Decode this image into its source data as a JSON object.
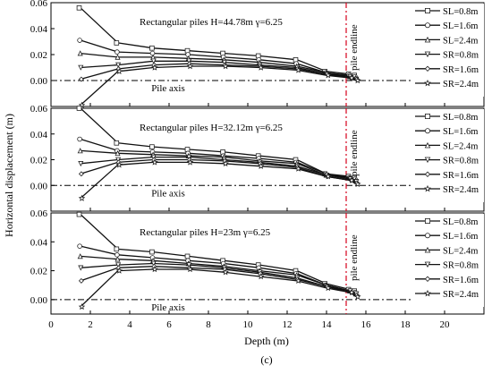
{
  "figure": {
    "y_axis_title": "Horizontal displacement (m)",
    "x_axis_title": "Depth (m)",
    "caption": "(c)",
    "endline_label": "pile endline",
    "axis_label": "Pile axis"
  },
  "chart_data": [
    {
      "type": "line",
      "title": "Rectangular piles  H=44.78m   γ=6.25",
      "xlabel": "Depth (m)",
      "ylabel": "Horizontal displacement (m)",
      "xlim": [
        0,
        22
      ],
      "ylim": [
        -0.02,
        0.06
      ],
      "yticks": [
        "0.06",
        "0.04",
        "0.02",
        "0.00"
      ],
      "grid": false,
      "legend": "top-right",
      "reference_lines": {
        "pile_endline_x": 15,
        "pile_axis_y": 0
      },
      "x": [
        1.5,
        3.4,
        5.2,
        7.0,
        8.8,
        10.6,
        12.5,
        14.0,
        15.2,
        15.5
      ],
      "series": [
        {
          "name": "SL=0.8m",
          "marker": "square",
          "values": [
            0.056,
            0.029,
            0.025,
            0.023,
            0.021,
            0.019,
            0.016,
            0.007,
            0.005,
            0.004
          ]
        },
        {
          "name": "SL=1.6m",
          "marker": "circle",
          "values": [
            0.031,
            0.022,
            0.021,
            0.02,
            0.018,
            0.016,
            0.013,
            0.006,
            0.004,
            0.003
          ]
        },
        {
          "name": "SL=2.4m",
          "marker": "triangle",
          "values": [
            0.021,
            0.018,
            0.018,
            0.017,
            0.016,
            0.014,
            0.011,
            0.006,
            0.003,
            0.002
          ]
        },
        {
          "name": "SR=0.8m",
          "marker": "tri-down",
          "values": [
            0.01,
            0.012,
            0.015,
            0.015,
            0.014,
            0.012,
            0.01,
            0.005,
            0.003,
            0.001
          ]
        },
        {
          "name": "SR=1.6m",
          "marker": "diamond",
          "values": [
            0.001,
            0.009,
            0.012,
            0.013,
            0.012,
            0.011,
            0.009,
            0.005,
            0.002,
            0.001
          ]
        },
        {
          "name": "SR=2.4m",
          "marker": "star",
          "values": [
            -0.019,
            0.007,
            0.01,
            0.011,
            0.011,
            0.01,
            0.008,
            0.004,
            0.002,
            0.0
          ]
        }
      ]
    },
    {
      "type": "line",
      "title": "Rectangular piles  H=32.12m   γ=6.25",
      "xlabel": "Depth (m)",
      "ylabel": "Horizontal displacement (m)",
      "xlim": [
        0,
        22
      ],
      "ylim": [
        -0.02,
        0.06
      ],
      "yticks": [
        "0.06",
        "0.04",
        "0.02",
        "0.00"
      ],
      "grid": false,
      "legend": "top-right",
      "reference_lines": {
        "pile_endline_x": 15,
        "pile_axis_y": 0
      },
      "x": [
        1.5,
        3.4,
        5.2,
        7.0,
        8.8,
        10.6,
        12.5,
        14.0,
        15.2,
        15.5
      ],
      "series": [
        {
          "name": "SL=0.8m",
          "marker": "square",
          "values": [
            0.06,
            0.033,
            0.03,
            0.028,
            0.026,
            0.023,
            0.02,
            0.009,
            0.007,
            0.006
          ]
        },
        {
          "name": "SL=1.6m",
          "marker": "circle",
          "values": [
            0.036,
            0.027,
            0.026,
            0.025,
            0.023,
            0.021,
            0.018,
            0.009,
            0.006,
            0.005
          ]
        },
        {
          "name": "SL=2.4m",
          "marker": "triangle",
          "values": [
            0.027,
            0.025,
            0.024,
            0.023,
            0.022,
            0.019,
            0.017,
            0.008,
            0.006,
            0.004
          ]
        },
        {
          "name": "SR=0.8m",
          "marker": "tri-down",
          "values": [
            0.017,
            0.02,
            0.022,
            0.022,
            0.02,
            0.018,
            0.015,
            0.008,
            0.005,
            0.003
          ]
        },
        {
          "name": "SR=1.6m",
          "marker": "diamond",
          "values": [
            0.009,
            0.018,
            0.02,
            0.02,
            0.019,
            0.017,
            0.014,
            0.007,
            0.004,
            0.002
          ]
        },
        {
          "name": "SR=2.4m",
          "marker": "star",
          "values": [
            -0.01,
            0.016,
            0.018,
            0.018,
            0.017,
            0.015,
            0.013,
            0.007,
            0.004,
            0.001
          ]
        }
      ]
    },
    {
      "type": "line",
      "title": "Rectangular piles  H=23m   γ=6.25",
      "xlabel": "Depth (m)",
      "ylabel": "Horizontal displacement (m)",
      "xlim": [
        0,
        22
      ],
      "ylim": [
        -0.01,
        0.06
      ],
      "yticks": [
        "0.06",
        "0.04",
        "0.02",
        "0.00"
      ],
      "xticks": [
        "0",
        "2",
        "4",
        "6",
        "8",
        "10",
        "12",
        "14",
        "16",
        "18",
        "20"
      ],
      "grid": false,
      "legend": "top-right",
      "reference_lines": {
        "pile_endline_x": 15,
        "pile_axis_y": 0
      },
      "x": [
        1.5,
        3.4,
        5.2,
        7.0,
        8.8,
        10.6,
        12.5,
        14.0,
        15.2,
        15.5
      ],
      "series": [
        {
          "name": "SL=0.8m",
          "marker": "square",
          "values": [
            0.059,
            0.035,
            0.033,
            0.03,
            0.027,
            0.024,
            0.02,
            0.011,
            0.007,
            0.006
          ]
        },
        {
          "name": "SL=1.6m",
          "marker": "circle",
          "values": [
            0.037,
            0.031,
            0.029,
            0.027,
            0.025,
            0.022,
            0.018,
            0.01,
            0.006,
            0.005
          ]
        },
        {
          "name": "SL=2.4m",
          "marker": "triangle",
          "values": [
            0.03,
            0.028,
            0.027,
            0.025,
            0.023,
            0.02,
            0.017,
            0.01,
            0.006,
            0.004
          ]
        },
        {
          "name": "SR=0.8m",
          "marker": "tri-down",
          "values": [
            0.022,
            0.024,
            0.025,
            0.024,
            0.022,
            0.019,
            0.015,
            0.009,
            0.006,
            0.004
          ]
        },
        {
          "name": "SR=1.6m",
          "marker": "diamond",
          "values": [
            0.013,
            0.022,
            0.023,
            0.022,
            0.021,
            0.018,
            0.014,
            0.009,
            0.005,
            0.003
          ]
        },
        {
          "name": "SR=2.4m",
          "marker": "star",
          "values": [
            -0.005,
            0.02,
            0.021,
            0.021,
            0.019,
            0.016,
            0.013,
            0.008,
            0.005,
            0.002
          ]
        }
      ]
    }
  ]
}
